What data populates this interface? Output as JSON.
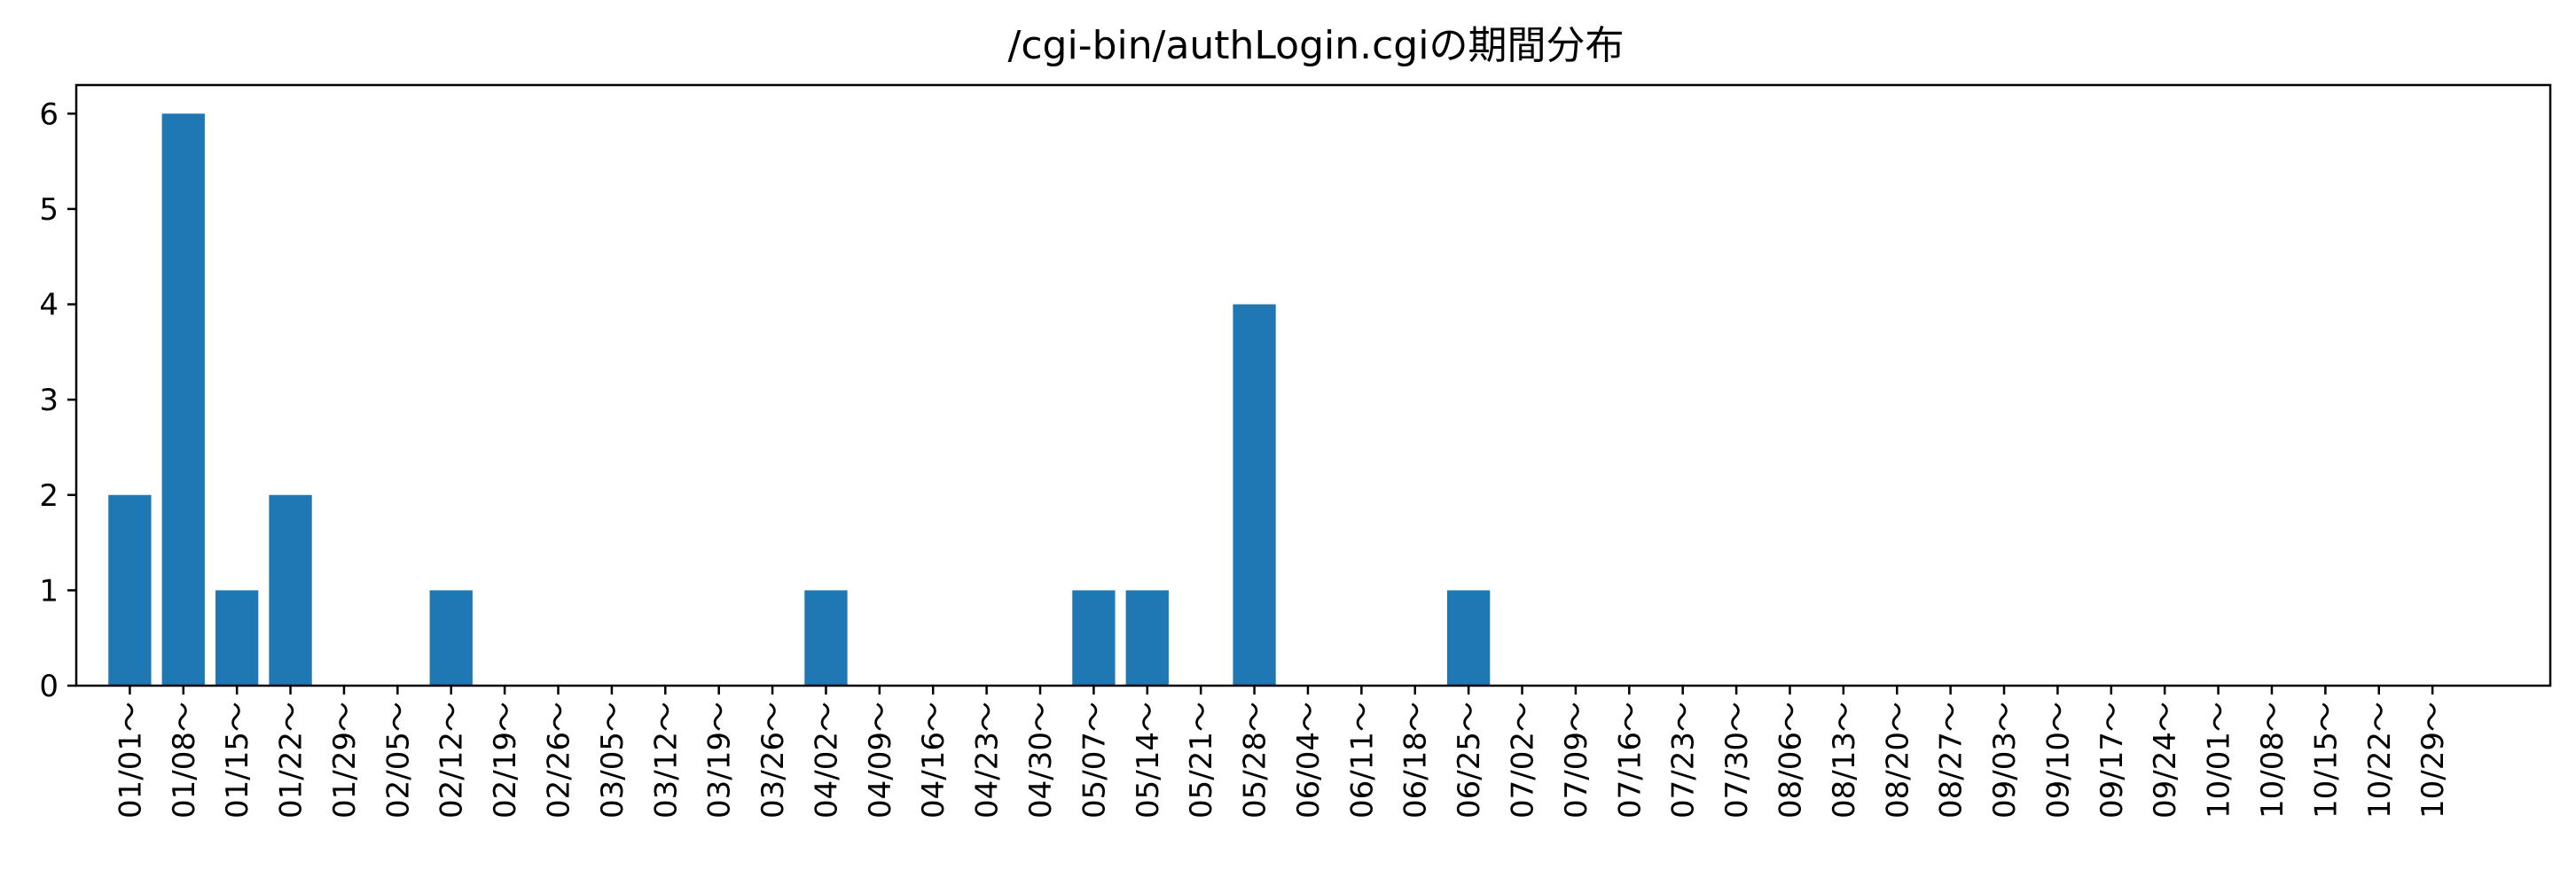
{
  "chart_data": {
    "type": "bar",
    "title": "/cgi-bin/authLogin.cgiの期間分布",
    "xlabel": "",
    "ylabel": "",
    "categories": [
      "01/01～",
      "01/08～",
      "01/15～",
      "01/22～",
      "01/29～",
      "02/05～",
      "02/12～",
      "02/19～",
      "02/26～",
      "03/05～",
      "03/12～",
      "03/19～",
      "03/26～",
      "04/02～",
      "04/09～",
      "04/16～",
      "04/23～",
      "04/30～",
      "05/07～",
      "05/14～",
      "05/21～",
      "05/28～",
      "06/04～",
      "06/11～",
      "06/18～",
      "06/25～",
      "07/02～",
      "07/09～",
      "07/16～",
      "07/23～",
      "07/30～",
      "08/06～",
      "08/13～",
      "08/20～",
      "08/27～",
      "09/03～",
      "09/10～",
      "09/17～",
      "09/24～",
      "10/01～",
      "10/08～",
      "10/15～",
      "10/22～",
      "10/29～"
    ],
    "values": [
      2,
      6,
      1,
      2,
      0,
      0,
      1,
      0,
      0,
      0,
      0,
      0,
      0,
      1,
      0,
      0,
      0,
      0,
      1,
      1,
      0,
      4,
      0,
      0,
      0,
      1,
      0,
      0,
      0,
      0,
      0,
      0,
      0,
      0,
      0,
      0,
      0,
      0,
      0,
      0,
      0,
      0,
      0,
      0
    ],
    "yticks": [
      0,
      1,
      2,
      3,
      4,
      5,
      6
    ],
    "ylim": [
      0,
      6.3
    ],
    "grid": false,
    "colors": {
      "bar": "#1f77b4"
    }
  }
}
